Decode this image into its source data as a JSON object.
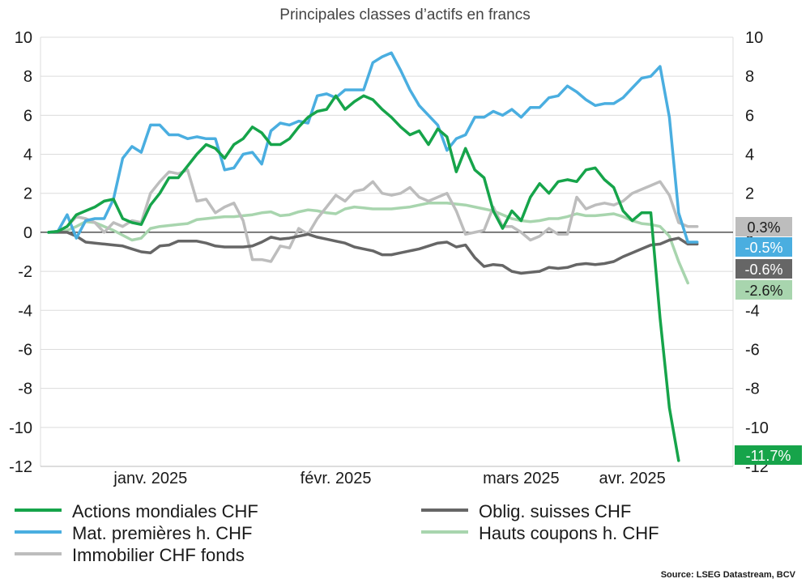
{
  "chart_data": {
    "type": "line",
    "title": "Principales classes d’actifs en francs",
    "source": "Source: LSEG Datastream, BCV",
    "ylim": [
      -12,
      10
    ],
    "y_ticks": [
      10,
      8,
      6,
      4,
      2,
      0,
      -2,
      -4,
      -6,
      -8,
      -10,
      -12
    ],
    "y_tick_labels": [
      "10",
      "8",
      "6",
      "4",
      "2",
      "0",
      "-2",
      "-4",
      "-6",
      "-8",
      "-10",
      "-12"
    ],
    "x_tick_labels": [
      "janv. 2025",
      "févr. 2025",
      "mars 2025",
      "avr. 2025"
    ],
    "x_tick_index": [
      11,
      31,
      51,
      63
    ],
    "grid": true,
    "legend_position": "bottom",
    "series": [
      {
        "name": "Actions mondiales CHF",
        "color": "#16a44a",
        "end_label": "-11.7%",
        "end_label_text_color": "#ffffff",
        "values": [
          0,
          0.05,
          0.3,
          0.9,
          1.1,
          1.3,
          1.6,
          1.7,
          0.7,
          0.5,
          0.4,
          1.4,
          2.0,
          2.8,
          2.8,
          3.4,
          4.0,
          4.5,
          4.3,
          3.8,
          4.5,
          4.8,
          5.4,
          5.1,
          4.5,
          4.5,
          4.8,
          5.4,
          5.9,
          6.2,
          6.3,
          7.0,
          6.3,
          6.7,
          7.0,
          6.8,
          6.3,
          5.9,
          5.4,
          5.0,
          5.2,
          4.5,
          5.3,
          4.9,
          3.1,
          4.3,
          3.2,
          2.8,
          1.1,
          0.2,
          1.1,
          0.6,
          1.8,
          2.5,
          2.0,
          2.6,
          2.7,
          2.6,
          3.2,
          3.3,
          2.7,
          2.3,
          1.1,
          0.6,
          1.0,
          1.0,
          -4.4,
          -9.0,
          -11.7
        ]
      },
      {
        "name": "Mat. premières h. CHF",
        "color": "#4aaee0",
        "end_label": "-0.5%",
        "end_label_text_color": "#ffffff",
        "values": [
          0,
          0.05,
          0.9,
          -0.3,
          0.6,
          0.7,
          0.7,
          1.7,
          3.8,
          4.4,
          4.1,
          5.5,
          5.5,
          5.0,
          5.0,
          4.8,
          4.9,
          4.8,
          4.8,
          3.2,
          3.3,
          4.0,
          4.1,
          3.5,
          5.2,
          5.6,
          5.5,
          5.7,
          5.6,
          7.0,
          7.1,
          6.9,
          7.3,
          7.3,
          7.3,
          8.7,
          9.0,
          9.2,
          8.3,
          7.3,
          6.5,
          6.0,
          5.5,
          4.2,
          4.8,
          5.0,
          5.9,
          5.9,
          6.2,
          6.0,
          6.3,
          5.9,
          6.4,
          6.4,
          6.9,
          7.0,
          7.5,
          7.2,
          6.8,
          6.5,
          6.6,
          6.6,
          6.9,
          7.4,
          7.9,
          8.0,
          8.5,
          5.9,
          1.0,
          -0.5,
          -0.5
        ]
      },
      {
        "name": "Immobilier  CHF fonds",
        "color": "#bdbdbd",
        "end_label": "0.3%",
        "end_label_text_color": "#1a1a1a",
        "values": [
          0,
          0.05,
          0.3,
          0.8,
          0.7,
          0.5,
          0.0,
          0.5,
          0.3,
          0.6,
          0.5,
          2.0,
          2.6,
          3.1,
          3.0,
          3.2,
          1.6,
          1.7,
          1.0,
          1.3,
          1.5,
          0.6,
          -1.4,
          -1.4,
          -1.5,
          -0.7,
          -0.8,
          0.2,
          -0.1,
          0.7,
          1.3,
          1.9,
          1.6,
          2.1,
          2.2,
          2.6,
          2.0,
          1.9,
          2.0,
          2.3,
          1.8,
          1.6,
          1.8,
          2.0,
          1.1,
          -0.1,
          0.0,
          0.1,
          1.3,
          0.3,
          0.3,
          0.0,
          -0.4,
          -0.2,
          0.2,
          -0.1,
          -0.1,
          1.8,
          1.2,
          1.4,
          1.5,
          1.4,
          1.6,
          2.0,
          2.2,
          2.4,
          2.6,
          1.9,
          0.5,
          0.3,
          0.3
        ]
      },
      {
        "name": "Oblig. suisses CHF",
        "color": "#666666",
        "end_label": "-0.6%",
        "end_label_text_color": "#ffffff",
        "values": [
          0,
          0.0,
          0.0,
          -0.2,
          -0.5,
          -0.55,
          -0.6,
          -0.65,
          -0.7,
          -0.85,
          -1.0,
          -1.05,
          -0.7,
          -0.65,
          -0.45,
          -0.45,
          -0.45,
          -0.55,
          -0.7,
          -0.75,
          -0.75,
          -0.75,
          -0.7,
          -0.5,
          -0.25,
          -0.35,
          -0.3,
          -0.2,
          -0.1,
          -0.25,
          -0.35,
          -0.45,
          -0.55,
          -0.75,
          -0.85,
          -0.95,
          -1.15,
          -1.15,
          -1.05,
          -0.95,
          -0.85,
          -0.7,
          -0.55,
          -0.5,
          -0.75,
          -0.65,
          -1.3,
          -1.75,
          -1.65,
          -1.7,
          -2.0,
          -2.1,
          -2.05,
          -2.0,
          -1.8,
          -1.85,
          -1.8,
          -1.65,
          -1.6,
          -1.65,
          -1.6,
          -1.5,
          -1.25,
          -1.05,
          -0.85,
          -0.65,
          -0.6,
          -0.4,
          -0.3,
          -0.6,
          -0.6
        ]
      },
      {
        "name": "Hauts coupons h. CHF",
        "color": "#a8d5ae",
        "end_label": "-2.6%",
        "end_label_text_color": "#1a1a1a",
        "values": [
          0,
          0.0,
          0.1,
          0.3,
          0.55,
          0.5,
          0.3,
          0.1,
          -0.15,
          -0.4,
          -0.3,
          0.2,
          0.3,
          0.35,
          0.4,
          0.45,
          0.65,
          0.7,
          0.75,
          0.8,
          0.8,
          0.85,
          0.9,
          1.0,
          1.05,
          0.85,
          0.9,
          1.05,
          1.15,
          1.1,
          1.0,
          0.95,
          1.2,
          1.3,
          1.25,
          1.2,
          1.2,
          1.2,
          1.25,
          1.3,
          1.4,
          1.5,
          1.5,
          1.5,
          1.45,
          1.4,
          1.3,
          1.2,
          1.1,
          0.9,
          0.7,
          0.6,
          0.55,
          0.6,
          0.7,
          0.7,
          0.8,
          0.95,
          0.85,
          0.85,
          0.9,
          0.95,
          0.8,
          0.6,
          0.45,
          0.4,
          0.3,
          -0.2,
          -1.5,
          -2.6
        ]
      }
    ],
    "legend_order": [
      0,
      3,
      1,
      4,
      2
    ]
  }
}
